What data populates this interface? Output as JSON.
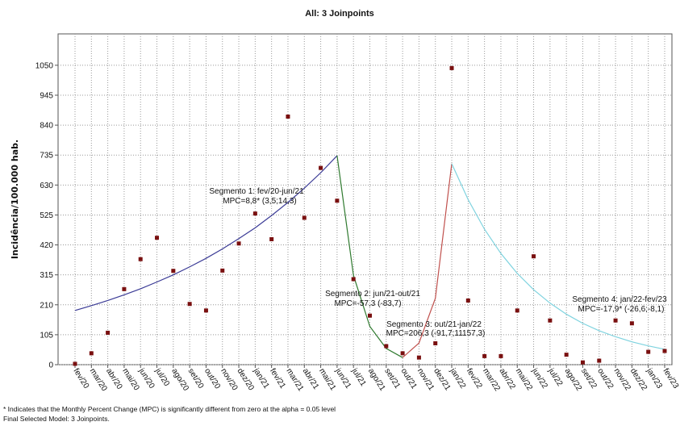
{
  "chart_data": {
    "type": "joinpoint",
    "title": "All: 3 Joinpoints",
    "y_label": "Incidência/100.000 hab.",
    "categories": [
      "fev/20",
      "mar/20",
      "abr/20",
      "mai/20",
      "jun/20",
      "jul/20",
      "ago/20",
      "set/20",
      "out/20",
      "nov/20",
      "dez/20",
      "jan/21",
      "fev/21",
      "mar/21",
      "abr/21",
      "mai/21",
      "jun/21",
      "jul/21",
      "ago/21",
      "set/21",
      "out/21",
      "nov/21",
      "dez/21",
      "jan/22",
      "fev/22",
      "mar/22",
      "abr/22",
      "mai/22",
      "jun/22",
      "jul/22",
      "ago/22",
      "set/22",
      "out/22",
      "nov/22",
      "dez/22",
      "jan/23",
      "fev/23"
    ],
    "values": [
      3,
      40,
      112,
      265,
      370,
      445,
      329,
      213,
      190,
      330,
      425,
      530,
      440,
      870,
      515,
      690,
      575,
      300,
      172,
      65,
      40,
      25,
      75,
      1040,
      225,
      30,
      30,
      190,
      380,
      155,
      35,
      8,
      14,
      155,
      145,
      45,
      48
    ],
    "point_color": "#7a1010",
    "segments": [
      {
        "color": "#3b3b96",
        "values": [
          190,
          207,
          225,
          245,
          266,
          290,
          315,
          343,
          373,
          406,
          442,
          480,
          523,
          569,
          619,
          673,
          733,
          null,
          null,
          null,
          null,
          null,
          null,
          null,
          null,
          null,
          null,
          null,
          null,
          null,
          null,
          null,
          null,
          null,
          null,
          null,
          null
        ]
      },
      {
        "color": "#2f7a2f",
        "values": [
          null,
          null,
          null,
          null,
          null,
          null,
          null,
          null,
          null,
          null,
          null,
          null,
          null,
          null,
          null,
          null,
          733,
          313,
          134,
          57,
          25,
          null,
          null,
          null,
          null,
          null,
          null,
          null,
          null,
          null,
          null,
          null,
          null,
          null,
          null,
          null,
          null
        ]
      },
      {
        "color": "#c0504d",
        "values": [
          null,
          null,
          null,
          null,
          null,
          null,
          null,
          null,
          null,
          null,
          null,
          null,
          null,
          null,
          null,
          null,
          null,
          null,
          null,
          null,
          25,
          76,
          233,
          705,
          null,
          null,
          null,
          null,
          null,
          null,
          null,
          null,
          null,
          null,
          null,
          null,
          null
        ]
      },
      {
        "color": "#7fd3df",
        "values": [
          null,
          null,
          null,
          null,
          null,
          null,
          null,
          null,
          null,
          null,
          null,
          null,
          null,
          null,
          null,
          null,
          null,
          null,
          null,
          null,
          null,
          null,
          null,
          705,
          579,
          475,
          390,
          320,
          263,
          216,
          177,
          145,
          119,
          98,
          80,
          66,
          54
        ]
      }
    ],
    "annotations": [
      "Segmento 1: fev/20-jun/21",
      "MPC=8,8* (3,5;14,3)",
      "Segmento 2: jun/21-out/21",
      "MPC=-57,3 (-83,7)",
      "Segmento 3: out/21-jan/22",
      "MPC=206,3 (-91,7;11157,3)",
      "Segmento 4: jan/22-fev/23",
      "MPC=-17,9* (-26,6;-8,1)"
    ],
    "footnotes": [
      "* Indicates that the Monthly Percent Change (MPC) is significantly different from zero at the alpha = 0.05 level",
      "Final Selected Model: 3 Joinpoints."
    ],
    "ylim": [
      0,
      1160
    ],
    "yticks": [
      0,
      105,
      210,
      315,
      420,
      525,
      630,
      735,
      840,
      945,
      1050
    ],
    "grid": true
  }
}
